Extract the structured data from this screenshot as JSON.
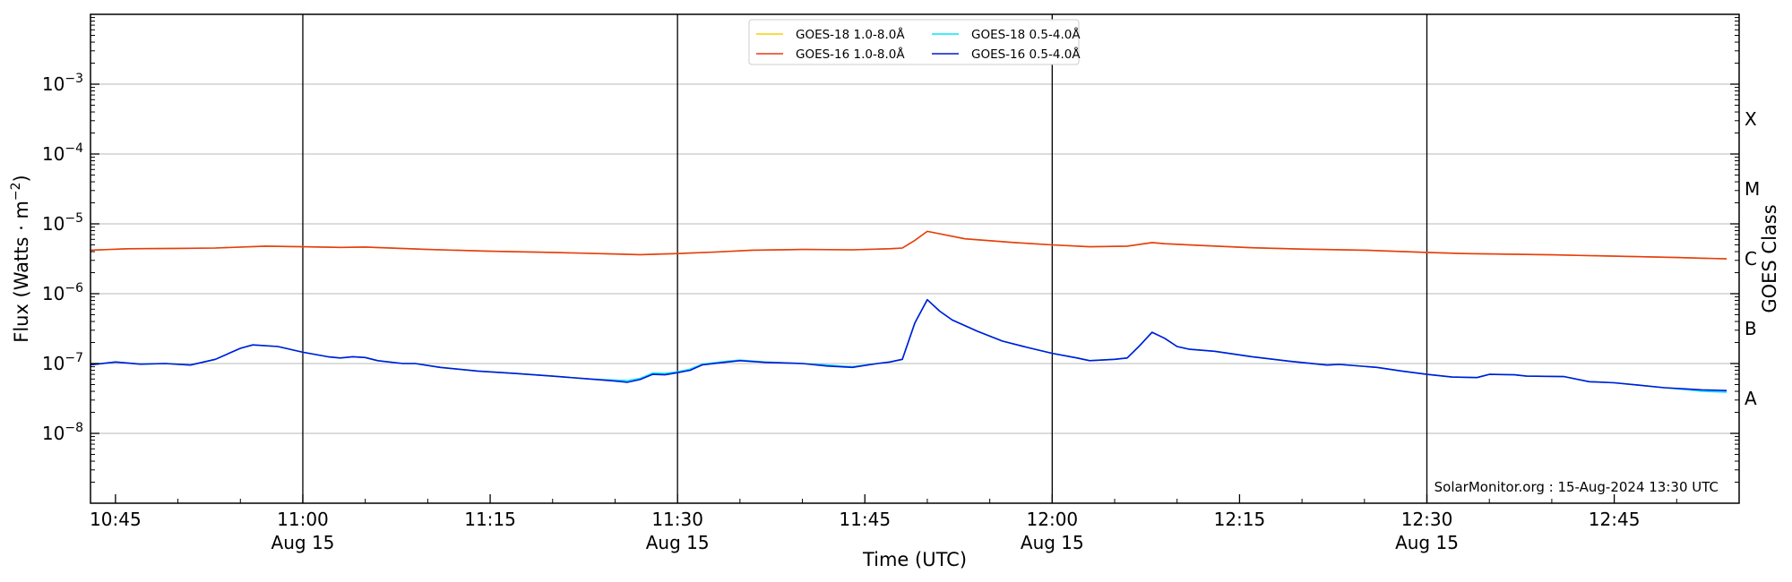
{
  "chart_data": {
    "type": "line",
    "xlabel": "Time (UTC)",
    "ylabel_main": "Flux (Watts · m",
    "ylabel_exp": "−2",
    "ylabel_close": ")",
    "y2label": "GOES Class",
    "yscale": "log",
    "ylim": [
      1e-09,
      0.01
    ],
    "xlim": [
      "10:43",
      "12:55"
    ],
    "grid": "horizontal at decades",
    "legend_position": "top-center",
    "credit": "SolarMonitor.org : 15-Aug-2024 13:30 UTC",
    "x_ticks": [
      {
        "time": "10:45",
        "label": "10:45",
        "sublabel": ""
      },
      {
        "time": "11:00",
        "label": "11:00",
        "sublabel": "Aug 15"
      },
      {
        "time": "11:15",
        "label": "11:15",
        "sublabel": ""
      },
      {
        "time": "11:30",
        "label": "11:30",
        "sublabel": "Aug 15"
      },
      {
        "time": "11:45",
        "label": "11:45",
        "sublabel": ""
      },
      {
        "time": "12:00",
        "label": "12:00",
        "sublabel": "Aug 15"
      },
      {
        "time": "12:15",
        "label": "12:15",
        "sublabel": ""
      },
      {
        "time": "12:30",
        "label": "12:30",
        "sublabel": "Aug 15"
      },
      {
        "time": "12:45",
        "label": "12:45",
        "sublabel": ""
      }
    ],
    "vertical_lines": [
      "11:00",
      "11:30",
      "12:00",
      "12:30"
    ],
    "y_ticks": [
      {
        "value": 1e-08,
        "base": "10",
        "exp": "−8"
      },
      {
        "value": 1e-07,
        "base": "10",
        "exp": "−7"
      },
      {
        "value": 1e-06,
        "base": "10",
        "exp": "−6"
      },
      {
        "value": 1e-05,
        "base": "10",
        "exp": "−5"
      },
      {
        "value": 0.0001,
        "base": "10",
        "exp": "−4"
      },
      {
        "value": 0.001,
        "base": "10",
        "exp": "−3"
      }
    ],
    "goes_classes": [
      {
        "label": "A",
        "value": 3.16e-08
      },
      {
        "label": "B",
        "value": 3.16e-07
      },
      {
        "label": "C",
        "value": 3.16e-06
      },
      {
        "label": "M",
        "value": 3.16e-05
      },
      {
        "label": "X",
        "value": 0.000316
      }
    ],
    "series": [
      {
        "name": "GOES-18 1.0-8.0Å",
        "color": "#f5d000",
        "points": [
          [
            "10:43",
            4.2e-06
          ],
          [
            "10:46",
            4.4e-06
          ],
          [
            "10:50",
            4.45e-06
          ],
          [
            "10:53",
            4.5e-06
          ],
          [
            "10:57",
            4.8e-06
          ],
          [
            "11:00",
            4.7e-06
          ],
          [
            "11:03",
            4.6e-06
          ],
          [
            "11:05",
            4.65e-06
          ],
          [
            "11:10",
            4.3e-06
          ],
          [
            "11:15",
            4.05e-06
          ],
          [
            "11:20",
            3.9e-06
          ],
          [
            "11:25",
            3.7e-06
          ],
          [
            "11:27",
            3.62e-06
          ],
          [
            "11:30",
            3.75e-06
          ],
          [
            "11:33",
            3.95e-06
          ],
          [
            "11:36",
            4.2e-06
          ],
          [
            "11:40",
            4.3e-06
          ],
          [
            "11:44",
            4.25e-06
          ],
          [
            "11:47",
            4.4e-06
          ],
          [
            "11:48",
            4.5e-06
          ],
          [
            "11:49",
            5.8e-06
          ],
          [
            "11:50",
            7.8e-06
          ],
          [
            "11:51",
            7.2e-06
          ],
          [
            "11:53",
            6.1e-06
          ],
          [
            "11:57",
            5.4e-06
          ],
          [
            "12:00",
            5e-06
          ],
          [
            "12:03",
            4.7e-06
          ],
          [
            "12:06",
            4.8e-06
          ],
          [
            "12:08",
            5.4e-06
          ],
          [
            "12:09",
            5.2e-06
          ],
          [
            "12:12",
            4.9e-06
          ],
          [
            "12:16",
            4.55e-06
          ],
          [
            "12:20",
            4.35e-06
          ],
          [
            "12:25",
            4.2e-06
          ],
          [
            "12:30",
            3.9e-06
          ],
          [
            "12:33",
            3.75e-06
          ],
          [
            "12:40",
            3.6e-06
          ],
          [
            "12:45",
            3.45e-06
          ],
          [
            "12:50",
            3.3e-06
          ],
          [
            "12:54",
            3.15e-06
          ]
        ]
      },
      {
        "name": "GOES-16 1.0-8.0Å",
        "color": "#e63b17",
        "points": [
          [
            "10:43",
            4.2e-06
          ],
          [
            "10:46",
            4.4e-06
          ],
          [
            "10:50",
            4.45e-06
          ],
          [
            "10:53",
            4.5e-06
          ],
          [
            "10:57",
            4.8e-06
          ],
          [
            "11:00",
            4.7e-06
          ],
          [
            "11:03",
            4.6e-06
          ],
          [
            "11:05",
            4.65e-06
          ],
          [
            "11:10",
            4.3e-06
          ],
          [
            "11:15",
            4.05e-06
          ],
          [
            "11:20",
            3.9e-06
          ],
          [
            "11:25",
            3.7e-06
          ],
          [
            "11:27",
            3.62e-06
          ],
          [
            "11:30",
            3.75e-06
          ],
          [
            "11:33",
            3.95e-06
          ],
          [
            "11:36",
            4.2e-06
          ],
          [
            "11:40",
            4.3e-06
          ],
          [
            "11:44",
            4.25e-06
          ],
          [
            "11:47",
            4.4e-06
          ],
          [
            "11:48",
            4.5e-06
          ],
          [
            "11:49",
            5.8e-06
          ],
          [
            "11:50",
            7.8e-06
          ],
          [
            "11:51",
            7.2e-06
          ],
          [
            "11:53",
            6.1e-06
          ],
          [
            "11:57",
            5.4e-06
          ],
          [
            "12:00",
            5e-06
          ],
          [
            "12:03",
            4.7e-06
          ],
          [
            "12:06",
            4.8e-06
          ],
          [
            "12:08",
            5.4e-06
          ],
          [
            "12:09",
            5.2e-06
          ],
          [
            "12:12",
            4.9e-06
          ],
          [
            "12:16",
            4.55e-06
          ],
          [
            "12:20",
            4.35e-06
          ],
          [
            "12:25",
            4.2e-06
          ],
          [
            "12:30",
            3.9e-06
          ],
          [
            "12:33",
            3.75e-06
          ],
          [
            "12:40",
            3.6e-06
          ],
          [
            "12:45",
            3.45e-06
          ],
          [
            "12:50",
            3.3e-06
          ],
          [
            "12:54",
            3.15e-06
          ]
        ]
      },
      {
        "name": "GOES-18 0.5-4.0Å",
        "color": "#00e5ff",
        "points": [
          [
            "10:43",
            9.6e-08
          ],
          [
            "10:45",
            1.05e-07
          ],
          [
            "10:47",
            9.8e-08
          ],
          [
            "10:49",
            1e-07
          ],
          [
            "10:51",
            9.5e-08
          ],
          [
            "10:53",
            1.15e-07
          ],
          [
            "10:55",
            1.65e-07
          ],
          [
            "10:56",
            1.85e-07
          ],
          [
            "10:58",
            1.75e-07
          ],
          [
            "11:00",
            1.45e-07
          ],
          [
            "11:02",
            1.25e-07
          ],
          [
            "11:03",
            1.2e-07
          ],
          [
            "11:04",
            1.25e-07
          ],
          [
            "11:05",
            1.22e-07
          ],
          [
            "11:06",
            1.1e-07
          ],
          [
            "11:08",
            1e-07
          ],
          [
            "11:09",
            1e-07
          ],
          [
            "11:11",
            8.8e-08
          ],
          [
            "11:14",
            7.8e-08
          ],
          [
            "11:17",
            7.2e-08
          ],
          [
            "11:20",
            6.6e-08
          ],
          [
            "11:23",
            6e-08
          ],
          [
            "11:25",
            5.8e-08
          ],
          [
            "11:26",
            5.7e-08
          ],
          [
            "11:27",
            6.1e-08
          ],
          [
            "11:28",
            7.3e-08
          ],
          [
            "11:29",
            7.2e-08
          ],
          [
            "11:30",
            7.6e-08
          ],
          [
            "11:31",
            8.3e-08
          ],
          [
            "11:32",
            9.8e-08
          ],
          [
            "11:34",
            1.08e-07
          ],
          [
            "11:35",
            1.12e-07
          ],
          [
            "11:37",
            1.05e-07
          ],
          [
            "11:40",
            1e-07
          ],
          [
            "11:42",
            9.5e-08
          ],
          [
            "11:43",
            9.2e-08
          ],
          [
            "11:44",
            9e-08
          ],
          [
            "11:46",
            1e-07
          ],
          [
            "11:47",
            1.05e-07
          ],
          [
            "11:48",
            1.15e-07
          ],
          [
            "11:49",
            3.8e-07
          ],
          [
            "11:50",
            8.2e-07
          ],
          [
            "11:51",
            5.6e-07
          ],
          [
            "11:52",
            4.2e-07
          ],
          [
            "11:54",
            2.9e-07
          ],
          [
            "11:56",
            2.1e-07
          ],
          [
            "11:58",
            1.7e-07
          ],
          [
            "12:00",
            1.4e-07
          ],
          [
            "12:02",
            1.2e-07
          ],
          [
            "12:03",
            1.1e-07
          ],
          [
            "12:05",
            1.15e-07
          ],
          [
            "12:06",
            1.2e-07
          ],
          [
            "12:07",
            1.8e-07
          ],
          [
            "12:08",
            2.8e-07
          ],
          [
            "12:09",
            2.3e-07
          ],
          [
            "12:10",
            1.75e-07
          ],
          [
            "12:11",
            1.6e-07
          ],
          [
            "12:13",
            1.5e-07
          ],
          [
            "12:16",
            1.25e-07
          ],
          [
            "12:19",
            1.08e-07
          ],
          [
            "12:22",
            9.5e-08
          ],
          [
            "12:23",
            9.7e-08
          ],
          [
            "12:26",
            8.8e-08
          ],
          [
            "12:28",
            7.8e-08
          ],
          [
            "12:30",
            7e-08
          ],
          [
            "12:32",
            6.4e-08
          ],
          [
            "12:34",
            6.3e-08
          ],
          [
            "12:35",
            7e-08
          ],
          [
            "12:37",
            6.9e-08
          ],
          [
            "12:38",
            6.6e-08
          ],
          [
            "12:41",
            6.5e-08
          ],
          [
            "12:43",
            5.5e-08
          ],
          [
            "12:45",
            5.3e-08
          ],
          [
            "12:47",
            4.9e-08
          ],
          [
            "12:49",
            4.5e-08
          ],
          [
            "12:51",
            4.2e-08
          ],
          [
            "12:52",
            4e-08
          ],
          [
            "12:54",
            3.9e-08
          ]
        ]
      },
      {
        "name": "GOES-16 0.5-4.0Å",
        "color": "#0018d8",
        "points": [
          [
            "10:43",
            9.6e-08
          ],
          [
            "10:45",
            1.05e-07
          ],
          [
            "10:47",
            9.8e-08
          ],
          [
            "10:49",
            1e-07
          ],
          [
            "10:51",
            9.5e-08
          ],
          [
            "10:53",
            1.15e-07
          ],
          [
            "10:55",
            1.65e-07
          ],
          [
            "10:56",
            1.85e-07
          ],
          [
            "10:58",
            1.75e-07
          ],
          [
            "11:00",
            1.45e-07
          ],
          [
            "11:02",
            1.25e-07
          ],
          [
            "11:03",
            1.2e-07
          ],
          [
            "11:04",
            1.25e-07
          ],
          [
            "11:05",
            1.22e-07
          ],
          [
            "11:06",
            1.1e-07
          ],
          [
            "11:08",
            1e-07
          ],
          [
            "11:09",
            1e-07
          ],
          [
            "11:11",
            8.8e-08
          ],
          [
            "11:14",
            7.8e-08
          ],
          [
            "11:17",
            7.2e-08
          ],
          [
            "11:20",
            6.6e-08
          ],
          [
            "11:23",
            6e-08
          ],
          [
            "11:25",
            5.6e-08
          ],
          [
            "11:26",
            5.4e-08
          ],
          [
            "11:27",
            5.9e-08
          ],
          [
            "11:28",
            7e-08
          ],
          [
            "11:29",
            6.9e-08
          ],
          [
            "11:30",
            7.4e-08
          ],
          [
            "11:31",
            8e-08
          ],
          [
            "11:32",
            9.6e-08
          ],
          [
            "11:34",
            1.05e-07
          ],
          [
            "11:35",
            1.1e-07
          ],
          [
            "11:37",
            1.04e-07
          ],
          [
            "11:40",
            1e-07
          ],
          [
            "11:42",
            9.2e-08
          ],
          [
            "11:43",
            9e-08
          ],
          [
            "11:44",
            8.8e-08
          ],
          [
            "11:46",
            1e-07
          ],
          [
            "11:47",
            1.05e-07
          ],
          [
            "11:48",
            1.15e-07
          ],
          [
            "11:49",
            3.8e-07
          ],
          [
            "11:50",
            8.2e-07
          ],
          [
            "11:51",
            5.6e-07
          ],
          [
            "11:52",
            4.2e-07
          ],
          [
            "11:54",
            2.9e-07
          ],
          [
            "11:56",
            2.1e-07
          ],
          [
            "11:58",
            1.7e-07
          ],
          [
            "12:00",
            1.4e-07
          ],
          [
            "12:02",
            1.2e-07
          ],
          [
            "12:03",
            1.1e-07
          ],
          [
            "12:05",
            1.15e-07
          ],
          [
            "12:06",
            1.2e-07
          ],
          [
            "12:07",
            1.8e-07
          ],
          [
            "12:08",
            2.8e-07
          ],
          [
            "12:09",
            2.3e-07
          ],
          [
            "12:10",
            1.75e-07
          ],
          [
            "12:11",
            1.6e-07
          ],
          [
            "12:13",
            1.5e-07
          ],
          [
            "12:16",
            1.25e-07
          ],
          [
            "12:19",
            1.08e-07
          ],
          [
            "12:22",
            9.5e-08
          ],
          [
            "12:23",
            9.7e-08
          ],
          [
            "12:26",
            8.8e-08
          ],
          [
            "12:28",
            7.8e-08
          ],
          [
            "12:30",
            7e-08
          ],
          [
            "12:32",
            6.4e-08
          ],
          [
            "12:34",
            6.3e-08
          ],
          [
            "12:35",
            7e-08
          ],
          [
            "12:37",
            6.9e-08
          ],
          [
            "12:38",
            6.6e-08
          ],
          [
            "12:41",
            6.5e-08
          ],
          [
            "12:43",
            5.5e-08
          ],
          [
            "12:45",
            5.3e-08
          ],
          [
            "12:47",
            4.9e-08
          ],
          [
            "12:49",
            4.5e-08
          ],
          [
            "12:51",
            4.3e-08
          ],
          [
            "12:52",
            4.2e-08
          ],
          [
            "12:54",
            4.1e-08
          ]
        ]
      }
    ]
  }
}
